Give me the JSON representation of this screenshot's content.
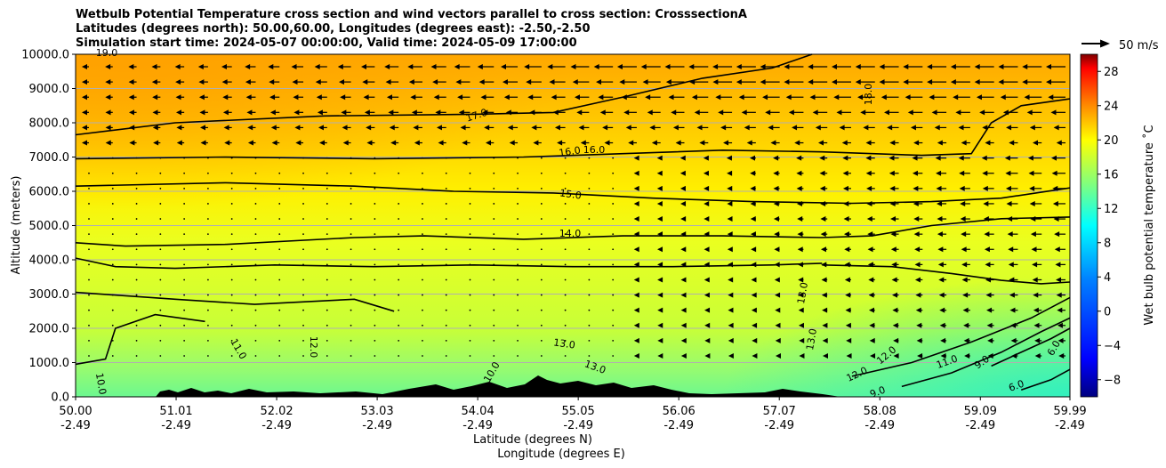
{
  "chart_data": {
    "type": "heatmap",
    "title_lines": [
      "Wetbulb Potential Temperature cross section and wind vectors parallel to cross section: CrosssectionA",
      "Latitudes (degrees north): 50.00,60.00, Longitudes (degrees east): -2.50,-2.50",
      "Simulation start time: 2024-05-07 00:00:00, Valid time: 2024-05-09 17:00:00"
    ],
    "ylabel": "Altitude (meters)",
    "xlabel": "Latitude (degrees N)",
    "xlabel2": "Longitude (degrees E)",
    "ylim": [
      0,
      10000
    ],
    "yticks": [
      "0.0",
      "1000.0",
      "2000.0",
      "3000.0",
      "4000.0",
      "5000.0",
      "6000.0",
      "7000.0",
      "8000.0",
      "9000.0",
      "10000.0"
    ],
    "xlim": [
      50.0,
      59.99
    ],
    "xticks_lat": [
      "50.00",
      "51.01",
      "52.02",
      "53.03",
      "54.04",
      "55.05",
      "56.06",
      "57.07",
      "58.08",
      "59.09",
      "59.99"
    ],
    "xticks_lon": [
      "-2.49",
      "-2.49",
      "-2.49",
      "-2.49",
      "-2.49",
      "-2.49",
      "-2.49",
      "-2.49",
      "-2.49",
      "-2.49",
      "-2.49"
    ],
    "colorbar_label": "Wet bulb potential temperature ˚C",
    "colorbar_range": [
      -10,
      30
    ],
    "colorbar_ticks": [
      "-8",
      "-4",
      "0",
      "4",
      "8",
      "12",
      "16",
      "20",
      "24",
      "28"
    ],
    "vector_key_label": "50 m/s",
    "grid": "horizontal",
    "contour_labels": [
      "17.0",
      "16.0",
      "16.0",
      "15.0",
      "14.0",
      "13.0",
      "13.0",
      "13.0",
      "13.0",
      "12.0",
      "12.0",
      "12.0",
      "11.0",
      "11.0",
      "10.0",
      "10.0",
      "9.0",
      "9.0",
      "6.0",
      "6.0",
      "18.0",
      "19.0"
    ],
    "contours": [
      {
        "level": 17,
        "points": [
          [
            50.0,
            7650
          ],
          [
            51.0,
            8000
          ],
          [
            52.5,
            8200
          ],
          [
            54.0,
            8250
          ],
          [
            54.8,
            8300
          ],
          [
            55.5,
            8750
          ],
          [
            56.3,
            9300
          ],
          [
            57.0,
            9600
          ],
          [
            57.4,
            10000
          ]
        ]
      },
      {
        "level": 16,
        "points": [
          [
            50.0,
            6950
          ],
          [
            51.5,
            7000
          ],
          [
            53.0,
            6950
          ],
          [
            54.5,
            7000
          ],
          [
            55.5,
            7100
          ],
          [
            56.5,
            7200
          ],
          [
            57.5,
            7150
          ],
          [
            58.5,
            7050
          ],
          [
            59.0,
            7100
          ],
          [
            59.2,
            8000
          ],
          [
            59.5,
            8500
          ],
          [
            59.99,
            8700
          ]
        ]
      },
      {
        "level": 15,
        "points": [
          [
            50.0,
            6150
          ],
          [
            51.5,
            6250
          ],
          [
            52.8,
            6150
          ],
          [
            53.8,
            6000
          ],
          [
            54.8,
            5950
          ],
          [
            55.8,
            5800
          ],
          [
            56.8,
            5700
          ],
          [
            57.8,
            5650
          ],
          [
            58.6,
            5700
          ],
          [
            59.3,
            5800
          ],
          [
            59.99,
            6100
          ]
        ]
      },
      {
        "level": 14,
        "points": [
          [
            50.0,
            4500
          ],
          [
            50.5,
            4400
          ],
          [
            51.5,
            4450
          ],
          [
            52.8,
            4650
          ],
          [
            53.5,
            4700
          ],
          [
            54.5,
            4600
          ],
          [
            55.5,
            4700
          ],
          [
            56.5,
            4700
          ],
          [
            57.5,
            4650
          ],
          [
            58.0,
            4700
          ],
          [
            58.6,
            5000
          ],
          [
            59.3,
            5200
          ],
          [
            59.99,
            5250
          ]
        ]
      },
      {
        "level": 13,
        "points": [
          [
            50.0,
            4050
          ],
          [
            50.4,
            3800
          ],
          [
            51.0,
            3750
          ],
          [
            52.0,
            3850
          ],
          [
            53.0,
            3800
          ],
          [
            54.0,
            3850
          ],
          [
            55.0,
            3800
          ],
          [
            56.0,
            3800
          ],
          [
            57.0,
            3850
          ],
          [
            57.5,
            3900
          ]
        ]
      },
      {
        "level": 12,
        "points": [
          [
            50.0,
            3050
          ],
          [
            50.5,
            2950
          ],
          [
            51.0,
            2850
          ],
          [
            51.8,
            2700
          ],
          [
            52.8,
            2850
          ],
          [
            53.2,
            2500
          ]
        ]
      },
      {
        "level": 11,
        "points": [
          [
            50.0,
            950
          ],
          [
            50.3,
            1100
          ],
          [
            50.4,
            2000
          ],
          [
            50.8,
            2400
          ],
          [
            51.3,
            2200
          ]
        ]
      },
      {
        "level": 12,
        "points": [
          [
            57.5,
            3850
          ],
          [
            58.2,
            3800
          ],
          [
            58.8,
            3600
          ],
          [
            59.3,
            3400
          ],
          [
            59.7,
            3300
          ],
          [
            59.99,
            3350
          ]
        ]
      },
      {
        "level": 11,
        "points": [
          [
            57.8,
            600
          ],
          [
            58.4,
            1000
          ],
          [
            59.0,
            1600
          ],
          [
            59.6,
            2300
          ],
          [
            59.99,
            2900
          ]
        ]
      },
      {
        "level": 10,
        "points": [
          [
            58.3,
            300
          ],
          [
            58.8,
            700
          ],
          [
            59.3,
            1300
          ],
          [
            59.7,
            1900
          ],
          [
            59.99,
            2300
          ]
        ]
      },
      {
        "level": 9,
        "points": [
          [
            59.2,
            900
          ],
          [
            59.5,
            1300
          ],
          [
            59.8,
            1700
          ],
          [
            59.99,
            2000
          ]
        ]
      },
      {
        "level": 6,
        "points": [
          [
            59.5,
            200
          ],
          [
            59.8,
            500
          ],
          [
            59.99,
            800
          ]
        ]
      }
    ]
  }
}
